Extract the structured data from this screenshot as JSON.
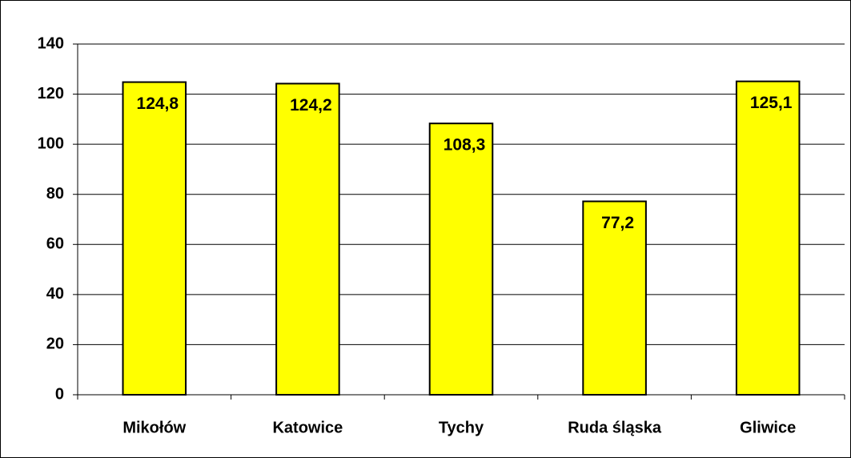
{
  "chart_data": {
    "type": "bar",
    "categories": [
      "Mikołów",
      "Katowice",
      "Tychy",
      "Ruda śląska",
      "Gliwice"
    ],
    "values": [
      124.8,
      124.2,
      108.3,
      77.2,
      125.1
    ],
    "value_labels": [
      "124,8",
      "124,2",
      "108,3",
      "77,2",
      "125,1"
    ],
    "color": "#ffff00",
    "ylim": [
      0,
      140
    ],
    "yticks": [
      0,
      20,
      40,
      60,
      80,
      100,
      120,
      140
    ],
    "grid": true
  }
}
